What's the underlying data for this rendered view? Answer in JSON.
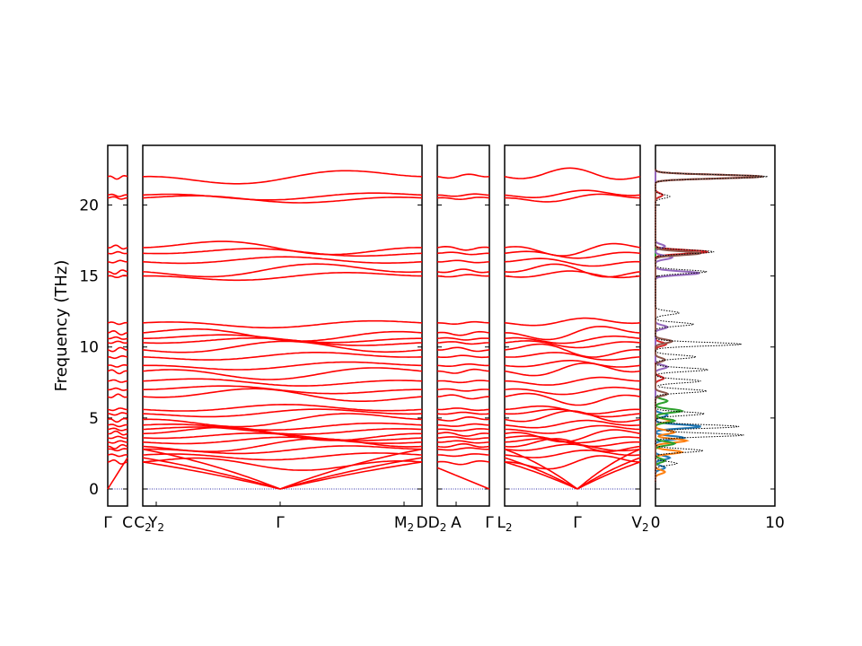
{
  "chart_data": {
    "type": "line",
    "ylabel": "Frequency (THz)",
    "ylim": [
      -1.2,
      24.2
    ],
    "y_ticks": [
      {
        "value": 0,
        "label": "0"
      },
      {
        "value": 5,
        "label": "5"
      },
      {
        "value": 10,
        "label": "10"
      },
      {
        "value": 15,
        "label": "15"
      },
      {
        "value": 20,
        "label": "20"
      }
    ],
    "band_color": "#ff0000",
    "zero_line_color": "#3333aa",
    "segments": [
      {
        "path": [
          "Γ",
          "C"
        ],
        "high_points": [
          "Γ",
          "C"
        ]
      },
      {
        "path": [
          "C₂",
          "Y₂"
        ],
        "high_points": [
          "C₂",
          "Y₂"
        ]
      },
      {
        "path": [
          "Y₂",
          "Γ",
          "M₂"
        ],
        "high_points": [
          "Y₂",
          "Γ",
          "M₂"
        ]
      },
      {
        "path": [
          "D",
          "A"
        ],
        "high_points": [
          "D",
          "D₂",
          "A"
        ]
      },
      {
        "path": [
          "Γ",
          "L₂",
          "Γ",
          "V₂"
        ],
        "high_points": [
          "Γ",
          "L₂",
          "Γ",
          "V₂"
        ]
      }
    ],
    "x_tick_labels": [
      {
        "label": "Γ",
        "sub": ""
      },
      {
        "label": "C",
        "sub": ""
      },
      {
        "label": "C",
        "sub": "2"
      },
      {
        "label": "Y",
        "sub": "2"
      },
      {
        "label": "Γ",
        "sub": ""
      },
      {
        "label": "M",
        "sub": "2"
      },
      {
        "label": "D",
        "sub": ""
      },
      {
        "label": "D",
        "sub": "2"
      },
      {
        "label": "A",
        "sub": ""
      },
      {
        "label": "Γ",
        "sub": ""
      },
      {
        "label": "L",
        "sub": "2"
      },
      {
        "label": "Γ",
        "sub": ""
      },
      {
        "label": "V",
        "sub": "2"
      }
    ],
    "dos": {
      "xlim": [
        0,
        10
      ],
      "x_ticks": [
        {
          "value": 0,
          "label": "0"
        },
        {
          "value": 10,
          "label": "10"
        }
      ],
      "series": [
        {
          "color": "#1f77b4",
          "peaks": [
            [
              4.4,
              3.8
            ],
            [
              3.6,
              2.4
            ],
            [
              2.2,
              1.2
            ],
            [
              1.5,
              0.8
            ],
            [
              5.2,
              1.0
            ]
          ]
        },
        {
          "color": "#ff7f0e",
          "peaks": [
            [
              2.6,
              2.2
            ],
            [
              3.4,
              2.6
            ],
            [
              4.0,
              1.6
            ],
            [
              1.2,
              0.8
            ],
            [
              4.8,
              1.2
            ]
          ]
        },
        {
          "color": "#2ca02c",
          "peaks": [
            [
              5.5,
              2.2
            ],
            [
              4.8,
              1.6
            ],
            [
              3.2,
              1.6
            ],
            [
              6.2,
              1.0
            ],
            [
              2.0,
              0.8
            ]
          ]
        },
        {
          "color": "#d62728",
          "peaks": [
            [
              22.0,
              8.9
            ],
            [
              16.7,
              4.4
            ],
            [
              10.2,
              0.9
            ],
            [
              7.8,
              0.7
            ],
            [
              20.7,
              0.6
            ]
          ]
        },
        {
          "color": "#9467bd",
          "peaks": [
            [
              15.2,
              3.7
            ],
            [
              16.3,
              1.4
            ],
            [
              11.4,
              1.0
            ],
            [
              8.6,
              1.0
            ],
            [
              17.1,
              0.8
            ]
          ]
        },
        {
          "color": "#8c564b",
          "peaks": [
            [
              22.0,
              9.0
            ],
            [
              16.6,
              3.8
            ],
            [
              10.4,
              1.4
            ],
            [
              6.7,
              1.0
            ],
            [
              9.1,
              0.8
            ]
          ]
        }
      ],
      "total": {
        "color": "#000000",
        "peaks": [
          [
            22.0,
            9.4
          ],
          [
            16.7,
            4.9
          ],
          [
            15.3,
            4.3
          ],
          [
            10.2,
            7.2
          ],
          [
            4.4,
            7.0
          ],
          [
            3.8,
            7.4
          ],
          [
            5.3,
            4.1
          ],
          [
            6.9,
            4.3
          ],
          [
            8.4,
            4.4
          ],
          [
            2.7,
            4.0
          ],
          [
            11.6,
            3.2
          ],
          [
            9.3,
            3.4
          ],
          [
            7.6,
            3.8
          ],
          [
            20.6,
            1.2
          ],
          [
            12.4,
            2.0
          ],
          [
            1.8,
            1.8
          ]
        ]
      }
    }
  }
}
